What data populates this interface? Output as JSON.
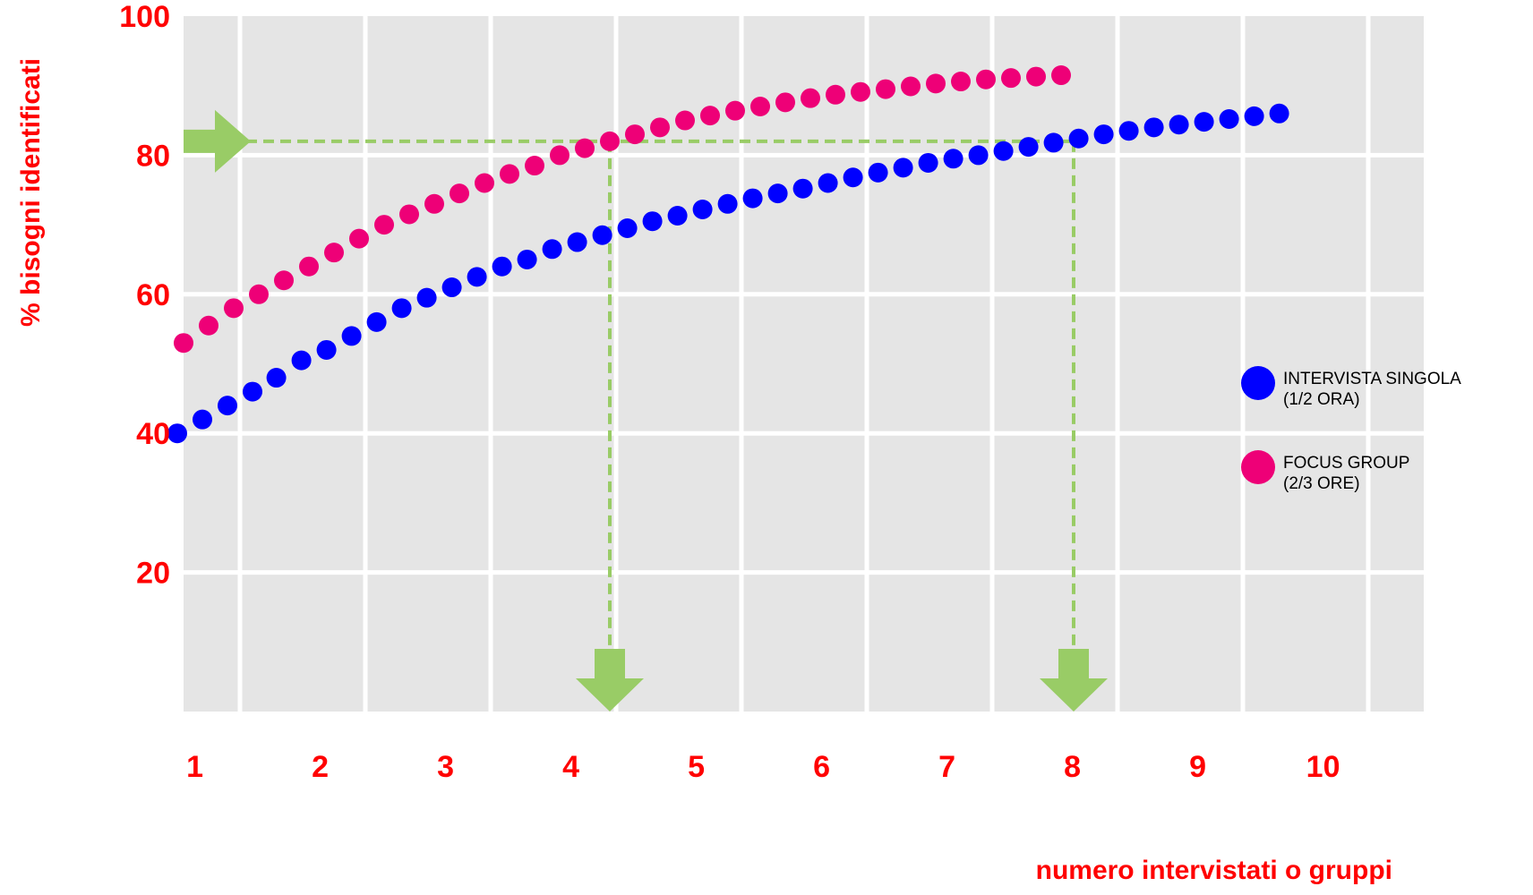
{
  "chart_data": {
    "type": "scatter",
    "title": "",
    "xlabel": "numero intervistati o gruppi",
    "ylabel": "% bisogni identificati",
    "xlim": [
      0,
      10
    ],
    "ylim": [
      0,
      100
    ],
    "x_ticks": [
      1,
      2,
      3,
      4,
      5,
      6,
      7,
      8,
      9,
      10
    ],
    "x_tick_labels": [
      "1",
      "2",
      "3",
      "4",
      "5",
      "6",
      "7",
      "8",
      "9",
      "10"
    ],
    "y_ticks": [
      20,
      40,
      60,
      80,
      100
    ],
    "y_tick_labels": [
      "20",
      "40",
      "60",
      "80",
      "100"
    ],
    "grid": true,
    "legend_position": "right",
    "colors": {
      "background": "#e5e5e5",
      "grid": "#ffffff",
      "tick_text": "#ff0000",
      "axis_title": "#ff0000",
      "guide": "#99cc66"
    },
    "series": [
      {
        "name": "INTERVISTA SINGOLA",
        "sublabel": "(1/2 ORA)",
        "color": "#0000ff",
        "x": [
          0.95,
          1.15,
          1.35,
          1.55,
          1.74,
          1.94,
          2.14,
          2.34,
          2.54,
          2.74,
          2.94,
          3.14,
          3.34,
          3.54,
          3.74,
          3.94,
          4.14,
          4.34,
          4.54,
          4.74,
          4.94,
          5.14,
          5.34,
          5.54,
          5.74,
          5.94,
          6.14,
          6.34,
          6.54,
          6.74,
          6.94,
          7.14,
          7.34,
          7.54,
          7.74,
          7.94,
          8.14,
          8.34,
          8.54,
          8.74,
          8.94,
          9.14,
          9.34,
          9.54,
          9.74
        ],
        "y": [
          40,
          42,
          44,
          46,
          48,
          50.5,
          52,
          54,
          56,
          58,
          59.5,
          61,
          62.5,
          64,
          65,
          66.5,
          67.5,
          68.5,
          69.5,
          70.5,
          71.3,
          72.2,
          73,
          73.8,
          74.5,
          75.2,
          76,
          76.8,
          77.5,
          78.2,
          78.9,
          79.5,
          80,
          80.6,
          81.2,
          81.8,
          82.4,
          83,
          83.5,
          84,
          84.4,
          84.8,
          85.2,
          85.6,
          86
        ]
      },
      {
        "name": "FOCUS GROUP",
        "sublabel": "(2/3 ORE)",
        "color": "#ee0077",
        "x": [
          1.0,
          1.2,
          1.4,
          1.6,
          1.8,
          2.0,
          2.2,
          2.4,
          2.6,
          2.8,
          3.0,
          3.2,
          3.4,
          3.6,
          3.8,
          4.0,
          4.2,
          4.4,
          4.6,
          4.8,
          5.0,
          5.2,
          5.4,
          5.6,
          5.8,
          6.0,
          6.2,
          6.4,
          6.6,
          6.8,
          7.0,
          7.2,
          7.4,
          7.6,
          7.8,
          8.0
        ],
        "y": [
          53,
          55.5,
          58,
          60,
          62,
          64,
          66,
          68,
          70,
          71.5,
          73,
          74.5,
          76,
          77.3,
          78.5,
          80,
          81,
          82,
          83,
          84,
          85,
          85.7,
          86.4,
          87,
          87.6,
          88.2,
          88.7,
          89.1,
          89.5,
          89.9,
          90.3,
          90.6,
          90.9,
          91.1,
          91.3,
          91.5
        ]
      }
    ],
    "guides": [
      {
        "type": "horizontal",
        "y": 82,
        "x_from": 0,
        "x_to": 8.1
      },
      {
        "type": "vertical",
        "x": 4.4,
        "y_from": 82,
        "y_to": 0
      },
      {
        "type": "vertical",
        "x": 8.1,
        "y_from": 82,
        "y_to": 0
      }
    ]
  }
}
